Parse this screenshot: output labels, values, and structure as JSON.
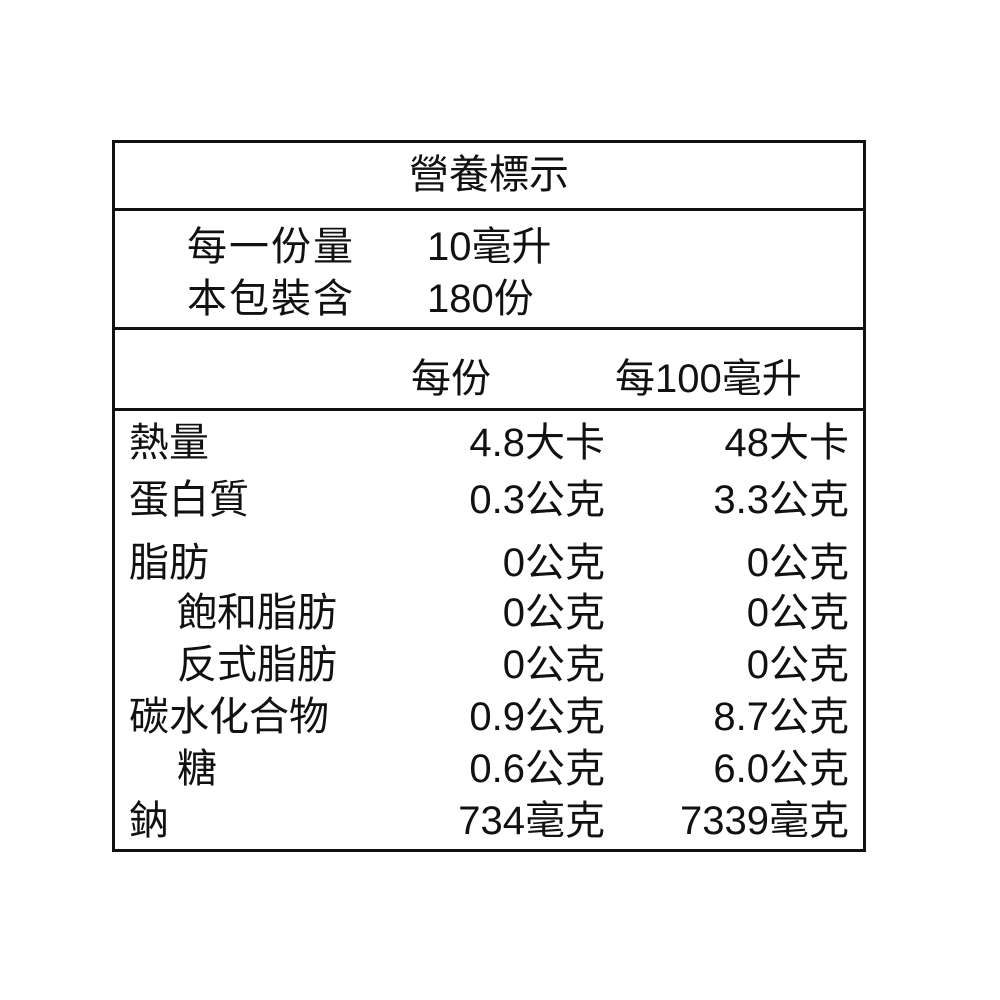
{
  "title": "營養標示",
  "serving": {
    "size_label": "每一份量",
    "size_value": "10毫升",
    "count_label": "本包裝含",
    "count_value": "180份"
  },
  "columns": {
    "per_serving": "每份",
    "per_100": "每100毫升"
  },
  "rows": [
    {
      "name": "熱量",
      "per_serving": "4.8大卡",
      "per_100": "48大卡"
    },
    {
      "name": "蛋白質",
      "per_serving": "0.3公克",
      "per_100": "3.3公克"
    },
    {
      "name": "脂肪",
      "per_serving": "0公克",
      "per_100": "0公克"
    },
    {
      "name": "飽和脂肪",
      "per_serving": "0公克",
      "per_100": "0公克"
    },
    {
      "name": "反式脂肪",
      "per_serving": "0公克",
      "per_100": "0公克"
    },
    {
      "name": "碳水化合物",
      "per_serving": "0.9公克",
      "per_100": "8.7公克"
    },
    {
      "name": "糖",
      "per_serving": "0.6公克",
      "per_100": "6.0公克"
    },
    {
      "name": "鈉",
      "per_serving": "734毫克",
      "per_100": "7339毫克"
    }
  ]
}
